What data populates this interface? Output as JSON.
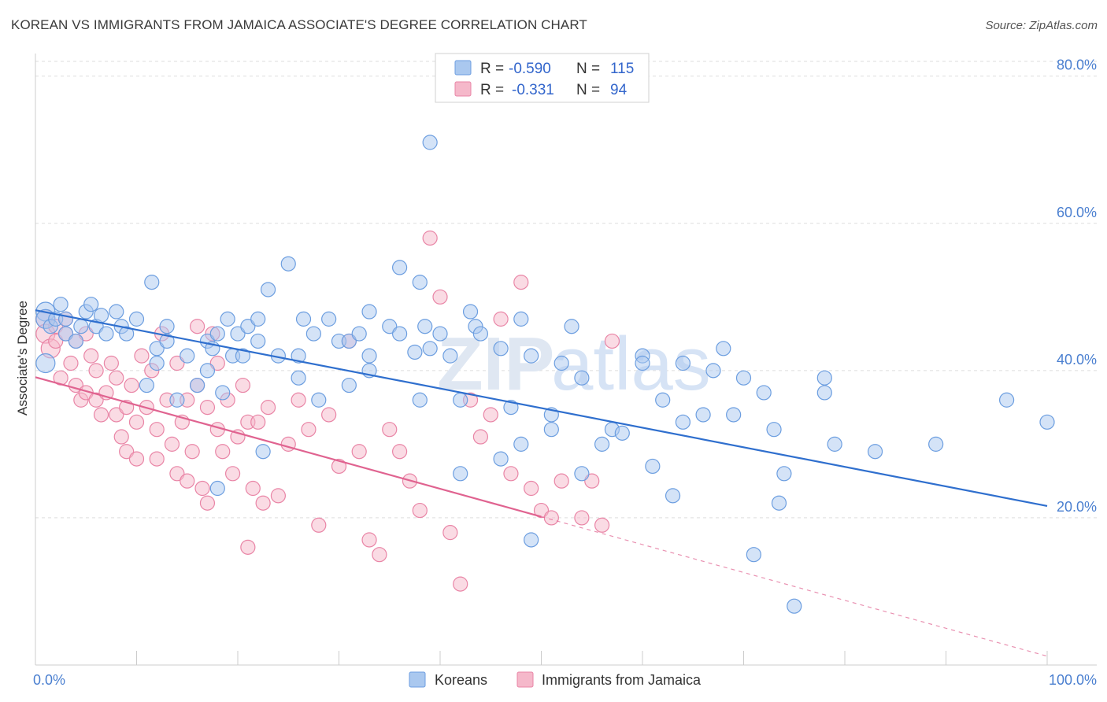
{
  "title": "KOREAN VS IMMIGRANTS FROM JAMAICA ASSOCIATE'S DEGREE CORRELATION CHART",
  "source": "Source: ZipAtlas.com",
  "watermark": {
    "zip": "ZIP",
    "atlas": "atlas"
  },
  "colors": {
    "korean_fill": "#aac8ef",
    "korean_stroke": "#6c9ee0",
    "korean_line": "#2f6fce",
    "jamaica_fill": "#f5b8ca",
    "jamaica_stroke": "#e985a6",
    "jamaica_line": "#e06390",
    "tick_color": "#4a7fd0",
    "grid": "#dddddd"
  },
  "legend": {
    "rows": [
      {
        "r_label": "R =",
        "r_value": "-0.590",
        "n_label": "N =",
        "n_value": "115"
      },
      {
        "r_label": "R =",
        "r_value": "-0.331",
        "n_label": "N =",
        "n_value": "94"
      }
    ]
  },
  "chart_data": {
    "type": "scatter",
    "title": "KOREAN VS IMMIGRANTS FROM JAMAICA ASSOCIATE'S DEGREE CORRELATION CHART",
    "xlabel": "",
    "ylabel": "Associate's Degree",
    "xlim": [
      0,
      100
    ],
    "ylim": [
      0,
      82
    ],
    "x_tick_labels": [
      "0.0%",
      "100.0%"
    ],
    "y_ticks": [
      20,
      40,
      60,
      80
    ],
    "y_tick_labels": [
      "20.0%",
      "40.0%",
      "60.0%",
      "80.0%"
    ],
    "grid": "horizontal dashed",
    "legend_position": "top-center",
    "series": [
      {
        "name": "Koreans",
        "trend": {
          "x": [
            0,
            100
          ],
          "y": [
            48.2,
            21.6
          ],
          "solid_to": 100
        },
        "points": [
          [
            1,
            48
          ],
          [
            1,
            47
          ],
          [
            1,
            41
          ],
          [
            1.5,
            46
          ],
          [
            2,
            47
          ],
          [
            2.5,
            49
          ],
          [
            3,
            45
          ],
          [
            3,
            47
          ],
          [
            4,
            44
          ],
          [
            4.5,
            46
          ],
          [
            5,
            48
          ],
          [
            5.5,
            49
          ],
          [
            6,
            46
          ],
          [
            6.5,
            47.5
          ],
          [
            7,
            45
          ],
          [
            8,
            48
          ],
          [
            8.5,
            46
          ],
          [
            9,
            45
          ],
          [
            10,
            47
          ],
          [
            11,
            38
          ],
          [
            11.5,
            52
          ],
          [
            12,
            43
          ],
          [
            12,
            41
          ],
          [
            13,
            46
          ],
          [
            13,
            44
          ],
          [
            14,
            36
          ],
          [
            15,
            42
          ],
          [
            16,
            38
          ],
          [
            17,
            44
          ],
          [
            17,
            40
          ],
          [
            17.5,
            43
          ],
          [
            18,
            45
          ],
          [
            18.5,
            37
          ],
          [
            18,
            24
          ],
          [
            19,
            47
          ],
          [
            19.5,
            42
          ],
          [
            20,
            45
          ],
          [
            20.5,
            42
          ],
          [
            21,
            46
          ],
          [
            22,
            44
          ],
          [
            22,
            47
          ],
          [
            22.5,
            29
          ],
          [
            23,
            51
          ],
          [
            24,
            42
          ],
          [
            25,
            54.5
          ],
          [
            26,
            39
          ],
          [
            26,
            42
          ],
          [
            26.5,
            47
          ],
          [
            27.5,
            45
          ],
          [
            28,
            36
          ],
          [
            29,
            47
          ],
          [
            30,
            44
          ],
          [
            31,
            38
          ],
          [
            31,
            44
          ],
          [
            32,
            45
          ],
          [
            33,
            42
          ],
          [
            33,
            40
          ],
          [
            33,
            48
          ],
          [
            35,
            46
          ],
          [
            36,
            45
          ],
          [
            36,
            54
          ],
          [
            37.5,
            42.5
          ],
          [
            38,
            52
          ],
          [
            38.5,
            46
          ],
          [
            38,
            36
          ],
          [
            39,
            71
          ],
          [
            39,
            43
          ],
          [
            40,
            45
          ],
          [
            41,
            42
          ],
          [
            42,
            36
          ],
          [
            42,
            26
          ],
          [
            43,
            48
          ],
          [
            43.5,
            46
          ],
          [
            44,
            45
          ],
          [
            46,
            43
          ],
          [
            46,
            28
          ],
          [
            47,
            35
          ],
          [
            48,
            47
          ],
          [
            48,
            30
          ],
          [
            49,
            42
          ],
          [
            49,
            17
          ],
          [
            51,
            32
          ],
          [
            51,
            34
          ],
          [
            52,
            41
          ],
          [
            53,
            46
          ],
          [
            54,
            26
          ],
          [
            54,
            39
          ],
          [
            56,
            30
          ],
          [
            57,
            32
          ],
          [
            58,
            31.5
          ],
          [
            60,
            42
          ],
          [
            60,
            41
          ],
          [
            61,
            27
          ],
          [
            62,
            36
          ],
          [
            63,
            23
          ],
          [
            64,
            41
          ],
          [
            64,
            33
          ],
          [
            66,
            34
          ],
          [
            67,
            40
          ],
          [
            68,
            43
          ],
          [
            69,
            34
          ],
          [
            70,
            39
          ],
          [
            71,
            15
          ],
          [
            72,
            37
          ],
          [
            73,
            32
          ],
          [
            73.5,
            22
          ],
          [
            74,
            26
          ],
          [
            75,
            8
          ],
          [
            78,
            39
          ],
          [
            78,
            37
          ],
          [
            79,
            30
          ],
          [
            83,
            29
          ],
          [
            89,
            30
          ],
          [
            96,
            36
          ],
          [
            100,
            33
          ]
        ]
      },
      {
        "name": "Immigrants from Jamaica",
        "trend": {
          "x": [
            0,
            100
          ],
          "y": [
            39.1,
            1.2
          ],
          "solid_to": 50
        },
        "points": [
          [
            1,
            47
          ],
          [
            1,
            45
          ],
          [
            1.5,
            43
          ],
          [
            2,
            46
          ],
          [
            2,
            44
          ],
          [
            2.5,
            39
          ],
          [
            3,
            47
          ],
          [
            3,
            45
          ],
          [
            3.5,
            41
          ],
          [
            4,
            44
          ],
          [
            4,
            38
          ],
          [
            4.5,
            36
          ],
          [
            5,
            45
          ],
          [
            5,
            37
          ],
          [
            5.5,
            42
          ],
          [
            6,
            40
          ],
          [
            6,
            36
          ],
          [
            6.5,
            34
          ],
          [
            7,
            37
          ],
          [
            7.5,
            41
          ],
          [
            8,
            39
          ],
          [
            8,
            34
          ],
          [
            8.5,
            31
          ],
          [
            9,
            29
          ],
          [
            9,
            35
          ],
          [
            9.5,
            38
          ],
          [
            10,
            33
          ],
          [
            10,
            28
          ],
          [
            10.5,
            42
          ],
          [
            11,
            35
          ],
          [
            11.5,
            40
          ],
          [
            12,
            32
          ],
          [
            12,
            28
          ],
          [
            12.5,
            45
          ],
          [
            13,
            36
          ],
          [
            13.5,
            30
          ],
          [
            14,
            26
          ],
          [
            14,
            41
          ],
          [
            14.5,
            33
          ],
          [
            15,
            25
          ],
          [
            15,
            36
          ],
          [
            15.5,
            29
          ],
          [
            16,
            46
          ],
          [
            16,
            38
          ],
          [
            16.5,
            24
          ],
          [
            17,
            35
          ],
          [
            17,
            22
          ],
          [
            17.5,
            45
          ],
          [
            18,
            32
          ],
          [
            18,
            41
          ],
          [
            18.5,
            29
          ],
          [
            19,
            36
          ],
          [
            19.5,
            26
          ],
          [
            20,
            31
          ],
          [
            20.5,
            38
          ],
          [
            21,
            16
          ],
          [
            21,
            33
          ],
          [
            21.5,
            24
          ],
          [
            22,
            33
          ],
          [
            22.5,
            22
          ],
          [
            23,
            35
          ],
          [
            24,
            23
          ],
          [
            25,
            30
          ],
          [
            26,
            36
          ],
          [
            27,
            32
          ],
          [
            28,
            19
          ],
          [
            29,
            34
          ],
          [
            30,
            27
          ],
          [
            31,
            44
          ],
          [
            32,
            29
          ],
          [
            33,
            17
          ],
          [
            34,
            15
          ],
          [
            35,
            32
          ],
          [
            36,
            29
          ],
          [
            37,
            25
          ],
          [
            38,
            21
          ],
          [
            39,
            58
          ],
          [
            40,
            50
          ],
          [
            41,
            18
          ],
          [
            42,
            11
          ],
          [
            43,
            36
          ],
          [
            44,
            31
          ],
          [
            45,
            34
          ],
          [
            46,
            47
          ],
          [
            47,
            26
          ],
          [
            48,
            52
          ],
          [
            49,
            24
          ],
          [
            50,
            21
          ],
          [
            51,
            20
          ],
          [
            52,
            25
          ],
          [
            54,
            20
          ],
          [
            55,
            25
          ],
          [
            56,
            19
          ],
          [
            57,
            44
          ]
        ]
      }
    ]
  }
}
